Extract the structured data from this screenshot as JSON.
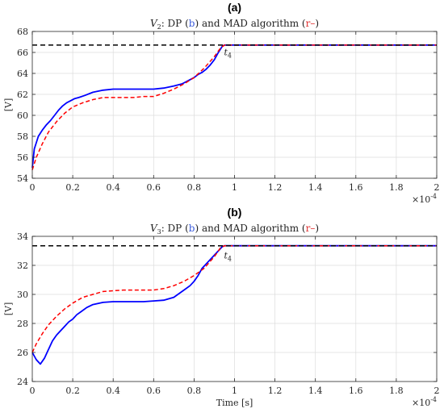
{
  "chart_data": [
    {
      "type": "line",
      "panel_label": "(a)",
      "title_var": "V",
      "title_sub": "2",
      "title_parts": [
        ": DP (",
        "b",
        ") and MAD algorithm (",
        "r–",
        ")"
      ],
      "ylabel": "[V]",
      "xlabel": "",
      "xlim": [
        0,
        2
      ],
      "ylim": [
        54,
        68
      ],
      "x_ticks": [
        "0",
        "0.2",
        "0.4",
        "0.6",
        "0.8",
        "1",
        "1.2",
        "1.4",
        "1.6",
        "1.8",
        "2"
      ],
      "y_ticks": [
        "54",
        "56",
        "58",
        "60",
        "62",
        "64",
        "66",
        "68"
      ],
      "x_exponent_base": "×10",
      "x_exponent_power": "-4",
      "annotation": {
        "text": "t",
        "sub": "4",
        "x": 0.94,
        "y": 66.2
      },
      "grid": true,
      "series": [
        {
          "color": "#0000ff",
          "style": "solid",
          "x": [
            0,
            0.01,
            0.03,
            0.05,
            0.07,
            0.09,
            0.11,
            0.13,
            0.15,
            0.17,
            0.19,
            0.21,
            0.23,
            0.26,
            0.3,
            0.35,
            0.4,
            0.45,
            0.5,
            0.55,
            0.6,
            0.65,
            0.7,
            0.74,
            0.78,
            0.8,
            0.82,
            0.84,
            0.86,
            0.88,
            0.9,
            0.92,
            0.94,
            0.95,
            1.0,
            1.5,
            2.0
          ],
          "y": [
            55.0,
            56.8,
            58.0,
            58.6,
            59.1,
            59.5,
            60.0,
            60.5,
            60.9,
            61.2,
            61.4,
            61.6,
            61.7,
            61.9,
            62.2,
            62.4,
            62.5,
            62.5,
            62.5,
            62.5,
            62.5,
            62.6,
            62.8,
            63.0,
            63.4,
            63.6,
            63.9,
            64.1,
            64.4,
            64.8,
            65.3,
            66.0,
            66.6,
            66.7,
            66.7,
            66.7,
            66.7
          ]
        },
        {
          "color": "#ff0000",
          "style": "dashed",
          "x": [
            0,
            0.02,
            0.05,
            0.08,
            0.12,
            0.16,
            0.2,
            0.25,
            0.3,
            0.35,
            0.4,
            0.45,
            0.5,
            0.55,
            0.6,
            0.65,
            0.7,
            0.75,
            0.8,
            0.85,
            0.9,
            0.93,
            0.95,
            1.0,
            1.5,
            2.0
          ],
          "y": [
            54.8,
            56.0,
            57.3,
            58.4,
            59.4,
            60.2,
            60.8,
            61.2,
            61.5,
            61.7,
            61.7,
            61.7,
            61.7,
            61.8,
            61.8,
            62.1,
            62.5,
            63.0,
            63.6,
            64.5,
            65.6,
            66.4,
            66.7,
            66.7,
            66.7,
            66.7
          ]
        },
        {
          "color": "#000000",
          "style": "dashed",
          "x": [
            0,
            2
          ],
          "y": [
            66.7,
            66.7
          ]
        }
      ]
    },
    {
      "type": "line",
      "panel_label": "(b)",
      "title_var": "V",
      "title_sub": "3",
      "title_parts": [
        ": DP (",
        "b",
        ") and MAD algorithm (",
        "r–",
        ")"
      ],
      "ylabel": "[V]",
      "xlabel": "Time [s]",
      "xlim": [
        0,
        2
      ],
      "ylim": [
        24,
        34
      ],
      "x_ticks": [
        "0",
        "0.2",
        "0.4",
        "0.6",
        "0.8",
        "1",
        "1.2",
        "1.4",
        "1.6",
        "1.8",
        "2"
      ],
      "y_ticks": [
        "24",
        "26",
        "28",
        "30",
        "32",
        "34"
      ],
      "x_exponent_base": "×10",
      "x_exponent_power": "-4",
      "annotation": {
        "text": "t",
        "sub": "4",
        "x": 0.94,
        "y": 32.8
      },
      "grid": true,
      "series": [
        {
          "color": "#0000ff",
          "style": "solid",
          "x": [
            0,
            0.02,
            0.04,
            0.06,
            0.08,
            0.1,
            0.12,
            0.14,
            0.16,
            0.18,
            0.2,
            0.22,
            0.24,
            0.27,
            0.3,
            0.35,
            0.4,
            0.45,
            0.5,
            0.55,
            0.6,
            0.65,
            0.7,
            0.75,
            0.78,
            0.8,
            0.82,
            0.84,
            0.86,
            0.88,
            0.9,
            0.92,
            0.94,
            0.95,
            1.0,
            1.5,
            2.0
          ],
          "y": [
            26.0,
            25.5,
            25.2,
            25.6,
            26.2,
            26.8,
            27.2,
            27.5,
            27.8,
            28.1,
            28.3,
            28.6,
            28.8,
            29.1,
            29.3,
            29.45,
            29.5,
            29.5,
            29.5,
            29.5,
            29.55,
            29.6,
            29.8,
            30.3,
            30.6,
            30.9,
            31.3,
            31.8,
            32.1,
            32.4,
            32.7,
            33.0,
            33.3,
            33.35,
            33.35,
            33.35,
            33.35
          ]
        },
        {
          "color": "#ff0000",
          "style": "dashed",
          "x": [
            0,
            0.02,
            0.05,
            0.08,
            0.12,
            0.16,
            0.2,
            0.25,
            0.3,
            0.35,
            0.4,
            0.45,
            0.5,
            0.55,
            0.6,
            0.65,
            0.7,
            0.75,
            0.8,
            0.85,
            0.9,
            0.93,
            0.95,
            1.0,
            1.5,
            2.0
          ],
          "y": [
            26.0,
            26.6,
            27.3,
            27.9,
            28.5,
            29.0,
            29.4,
            29.8,
            30.0,
            30.2,
            30.25,
            30.3,
            30.3,
            30.3,
            30.3,
            30.4,
            30.6,
            30.9,
            31.3,
            31.8,
            32.6,
            33.2,
            33.35,
            33.35,
            33.35,
            33.35
          ]
        },
        {
          "color": "#000000",
          "style": "dashed",
          "x": [
            0,
            2
          ],
          "y": [
            33.35,
            33.35
          ]
        }
      ]
    }
  ]
}
